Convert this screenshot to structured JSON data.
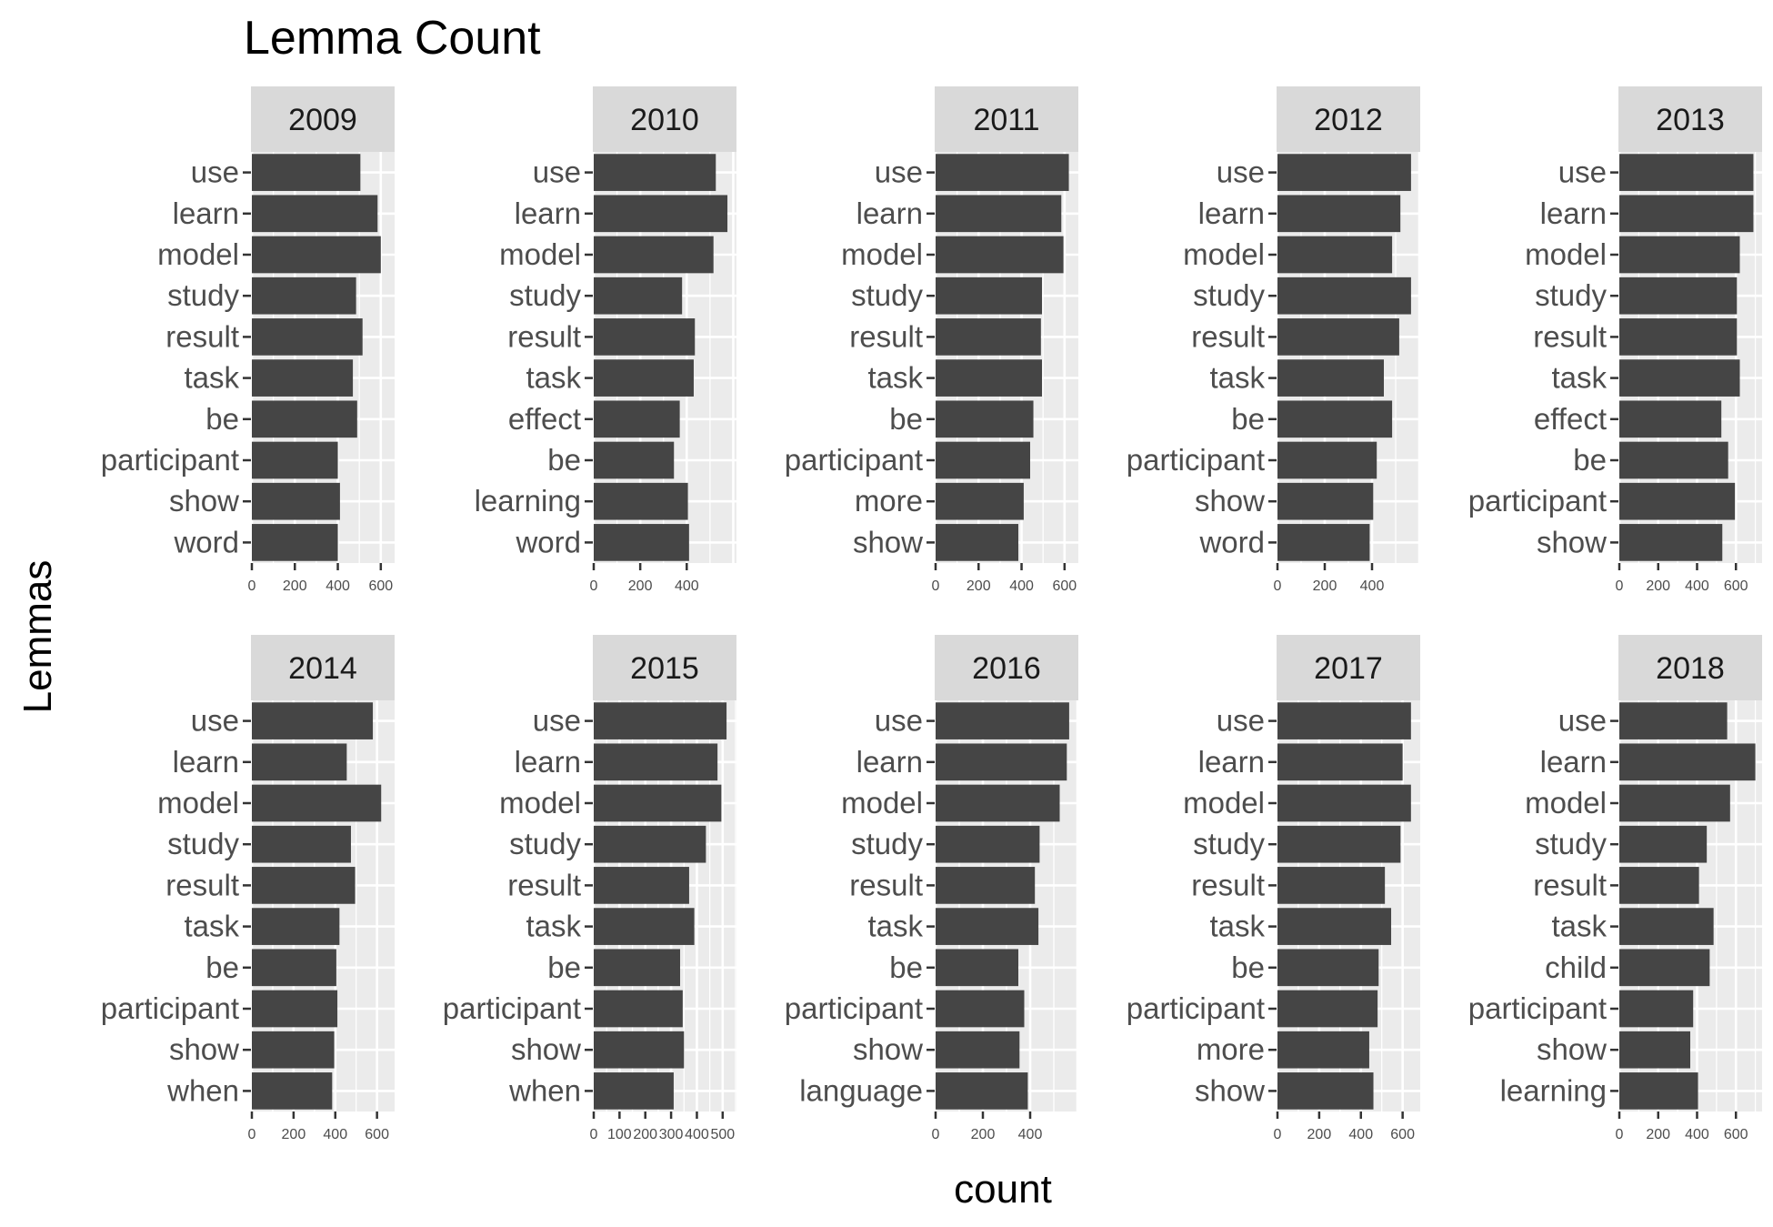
{
  "chart_data": {
    "type": "bar",
    "orientation": "horizontal",
    "title": "Lemma Count",
    "xlabel": "count",
    "ylabel": "Lemmas",
    "grid": true,
    "colors": {
      "bar": "#454545",
      "panel_bg": "#ebebeb",
      "strip_bg": "#d9d9d9",
      "grid": "#ffffff",
      "text": "#222222",
      "axis_text": "#4d4d4d"
    },
    "panels": [
      {
        "facet": "2009",
        "categories": [
          "use",
          "learn",
          "model",
          "study",
          "result",
          "task",
          "be",
          "participant",
          "show",
          "word"
        ],
        "values": [
          505,
          585,
          600,
          485,
          515,
          470,
          490,
          400,
          410,
          400
        ],
        "xlim": [
          0,
          660
        ],
        "xticks": [
          "0",
          "200",
          "400",
          "600"
        ]
      },
      {
        "facet": "2010",
        "categories": [
          "use",
          "learn",
          "model",
          "study",
          "result",
          "task",
          "effect",
          "be",
          "learning",
          "word"
        ],
        "values": [
          525,
          575,
          515,
          380,
          435,
          430,
          370,
          345,
          405,
          410
        ],
        "xlim": [
          0,
          610
        ],
        "xticks": [
          "0",
          "200",
          "400"
        ]
      },
      {
        "facet": "2011",
        "categories": [
          "use",
          "learn",
          "model",
          "study",
          "result",
          "task",
          "be",
          "participant",
          "more",
          "show"
        ],
        "values": [
          620,
          585,
          595,
          495,
          490,
          495,
          455,
          440,
          410,
          385
        ],
        "xlim": [
          0,
          660
        ],
        "xticks": [
          "0",
          "200",
          "400",
          "600"
        ]
      },
      {
        "facet": "2012",
        "categories": [
          "use",
          "learn",
          "model",
          "study",
          "result",
          "task",
          "be",
          "participant",
          "show",
          "word"
        ],
        "values": [
          565,
          520,
          485,
          565,
          515,
          450,
          485,
          420,
          405,
          390
        ],
        "xlim": [
          0,
          600
        ],
        "xticks": [
          "0",
          "200",
          "400"
        ]
      },
      {
        "facet": "2013",
        "categories": [
          "use",
          "learn",
          "model",
          "study",
          "result",
          "task",
          "effect",
          "be",
          "participant",
          "show"
        ],
        "values": [
          690,
          690,
          620,
          605,
          605,
          620,
          525,
          560,
          595,
          530
        ],
        "xlim": [
          0,
          730
        ],
        "xticks": [
          "0",
          "200",
          "400",
          "600"
        ]
      },
      {
        "facet": "2014",
        "categories": [
          "use",
          "learn",
          "model",
          "study",
          "result",
          "task",
          "be",
          "participant",
          "show",
          "when"
        ],
        "values": [
          580,
          455,
          620,
          475,
          495,
          420,
          405,
          410,
          395,
          385
        ],
        "xlim": [
          0,
          680
        ],
        "xticks": [
          "0",
          "200",
          "400",
          "600"
        ]
      },
      {
        "facet": "2015",
        "categories": [
          "use",
          "learn",
          "model",
          "study",
          "result",
          "task",
          "be",
          "participant",
          "show",
          "when"
        ],
        "values": [
          515,
          480,
          495,
          435,
          370,
          390,
          335,
          345,
          350,
          310
        ],
        "xlim": [
          0,
          550
        ],
        "xticks": [
          "0",
          "100",
          "200",
          "300",
          "400",
          "500"
        ]
      },
      {
        "facet": "2016",
        "categories": [
          "use",
          "learn",
          "model",
          "study",
          "result",
          "task",
          "be",
          "participant",
          "show",
          "language"
        ],
        "values": [
          565,
          555,
          525,
          440,
          420,
          435,
          350,
          375,
          355,
          390
        ],
        "xlim": [
          0,
          600
        ],
        "xticks": [
          "0",
          "200",
          "400"
        ]
      },
      {
        "facet": "2017",
        "categories": [
          "use",
          "learn",
          "model",
          "study",
          "result",
          "task",
          "be",
          "participant",
          "more",
          "show"
        ],
        "values": [
          640,
          600,
          640,
          590,
          515,
          545,
          485,
          480,
          440,
          460
        ],
        "xlim": [
          0,
          680
        ],
        "xticks": [
          "0",
          "200",
          "400",
          "600"
        ]
      },
      {
        "facet": "2018",
        "categories": [
          "use",
          "learn",
          "model",
          "study",
          "result",
          "task",
          "child",
          "participant",
          "show",
          "learning"
        ],
        "values": [
          555,
          700,
          570,
          450,
          410,
          485,
          465,
          380,
          365,
          405
        ],
        "xlim": [
          0,
          730
        ],
        "xticks": [
          "0",
          "200",
          "400",
          "600"
        ]
      }
    ]
  }
}
